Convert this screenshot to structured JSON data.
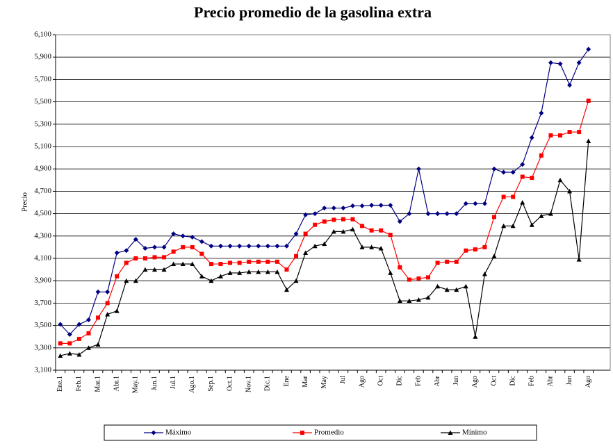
{
  "chart_data": {
    "type": "line",
    "title": "Precio promedio de la gasolina extra",
    "y_label": "Precio",
    "categories": [
      "Ene.1",
      null,
      "Feb.1",
      null,
      "Mar.1",
      null,
      "Abr.1",
      null,
      "May.1",
      null,
      "Jun.1",
      null,
      "Jul.1",
      null,
      "Ago.1",
      null,
      "Sep.1",
      null,
      "Oct.1",
      null,
      "Nov.1",
      null,
      "Dic.1",
      null,
      "Ene",
      null,
      "Mar",
      null,
      "May",
      null,
      "Jul",
      null,
      "Ago",
      null,
      "Oct",
      null,
      "Dic",
      null,
      "Feb",
      null,
      "Abr",
      null,
      "Jun",
      null,
      "Ago",
      null,
      "Oct",
      null,
      "Dic",
      null,
      "Feb",
      null,
      "Abr",
      null,
      "Jun",
      null,
      "Ago"
    ],
    "series": [
      {
        "name": "Máximo",
        "color": "#000080",
        "marker": "diamond",
        "values": [
          3510,
          3420,
          3510,
          3550,
          3800,
          3800,
          4150,
          4170,
          4270,
          4190,
          4200,
          4200,
          4320,
          4300,
          4290,
          4250,
          4210,
          4210,
          4210,
          4210,
          4210,
          4210,
          4210,
          4210,
          4210,
          4320,
          4490,
          4500,
          4550,
          4550,
          4550,
          4570,
          4570,
          4575,
          4575,
          4575,
          4430,
          4500,
          4900,
          4500,
          4500,
          4500,
          4500,
          4590,
          4590,
          4590,
          4900,
          4870,
          4870,
          4940,
          5180,
          5400,
          5850,
          5840,
          5650,
          5850,
          5970
        ]
      },
      {
        "name": "Promedio",
        "color": "#ff0000",
        "marker": "square",
        "values": [
          3340,
          3340,
          3380,
          3430,
          3570,
          3700,
          3940,
          4060,
          4100,
          4100,
          4110,
          4110,
          4160,
          4200,
          4200,
          4140,
          4050,
          4050,
          4060,
          4060,
          4070,
          4070,
          4070,
          4070,
          4000,
          4120,
          4320,
          4400,
          4430,
          4445,
          4450,
          4450,
          4390,
          4350,
          4350,
          4310,
          4020,
          3910,
          3920,
          3930,
          4060,
          4070,
          4070,
          4170,
          4180,
          4200,
          4470,
          4650,
          4650,
          4830,
          4820,
          5020,
          5200,
          5200,
          5230,
          5230,
          5510
        ]
      },
      {
        "name": "Mínimo",
        "color": "#000000",
        "marker": "triangle",
        "values": [
          3230,
          3250,
          3240,
          3300,
          3330,
          3600,
          3630,
          3900,
          3900,
          4000,
          4000,
          4000,
          4050,
          4050,
          4050,
          3940,
          3900,
          3940,
          3970,
          3970,
          3980,
          3980,
          3980,
          3980,
          3820,
          3900,
          4150,
          4210,
          4230,
          4340,
          4340,
          4360,
          4200,
          4200,
          4190,
          3970,
          3720,
          3720,
          3730,
          3750,
          3850,
          3820,
          3820,
          3850,
          3400,
          3960,
          4120,
          4390,
          4390,
          4600,
          4400,
          4480,
          4500,
          4800,
          4700,
          4090,
          5150
        ]
      }
    ],
    "ylim": [
      3100,
      6100
    ],
    "yticks": [
      {
        "value": 3100,
        "label": "3,100"
      },
      {
        "value": 3300,
        "label": "3,300"
      },
      {
        "value": 3500,
        "label": "3,500"
      },
      {
        "value": 3700,
        "label": "3,700"
      },
      {
        "value": 3900,
        "label": "3,900"
      },
      {
        "value": 4100,
        "label": "4,100"
      },
      {
        "value": 4300,
        "label": "4,300"
      },
      {
        "value": 4500,
        "label": "4,500"
      },
      {
        "value": 4700,
        "label": "4,700"
      },
      {
        "value": 4900,
        "label": "4,900"
      },
      {
        "value": 5100,
        "label": "5,100"
      },
      {
        "value": 5300,
        "label": "5,300"
      },
      {
        "value": 5500,
        "label": "5,500"
      },
      {
        "value": 5700,
        "label": "5,700"
      },
      {
        "value": 5900,
        "label": "5,900"
      },
      {
        "value": 6100,
        "label": "6,100"
      }
    ],
    "grid": true,
    "legend": "bottom"
  }
}
